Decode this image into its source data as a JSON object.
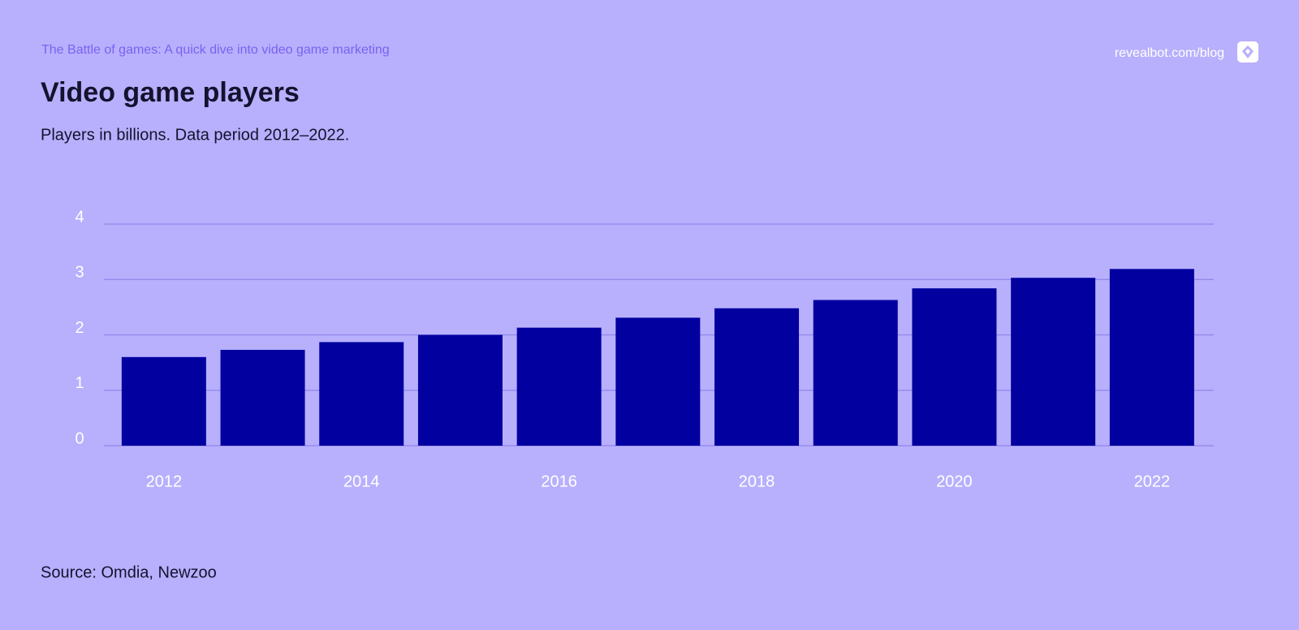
{
  "chart_data": {
    "type": "bar",
    "kicker": "The Battle of games: A quick dive into video game marketing",
    "site": "revealbot.com/blog",
    "title": "Video game players",
    "subtitle": "Players in billions. Data period 2012–2022.",
    "source": "Source: Omdia, Newzoo",
    "categories": [
      "2012",
      null,
      "2014",
      null,
      "2016",
      null,
      "2018",
      null,
      "2020",
      null,
      "2022"
    ],
    "values": [
      1.6,
      1.73,
      1.87,
      2.0,
      2.13,
      2.31,
      2.48,
      2.63,
      2.84,
      3.03,
      3.19
    ],
    "color": "#0300a0",
    "ylim": [
      0,
      4
    ],
    "yticks": [
      0,
      1,
      2,
      3,
      4
    ],
    "grid": true
  }
}
